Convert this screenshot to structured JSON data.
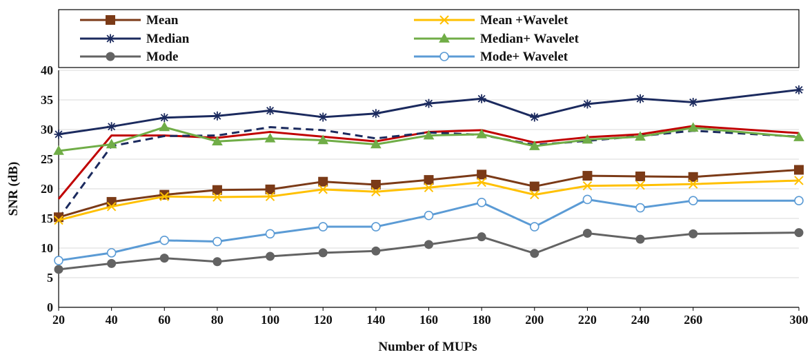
{
  "chart_data": {
    "type": "line",
    "title": "",
    "xlabel": "Number of MUPs",
    "ylabel": "SNR (dB)",
    "xlim": [
      20,
      300
    ],
    "ylim": [
      0,
      40
    ],
    "x": [
      20,
      40,
      60,
      80,
      100,
      120,
      140,
      160,
      180,
      200,
      220,
      240,
      260,
      300
    ],
    "x_tick_labels": [
      "20",
      "40",
      "60",
      "80",
      "100",
      "120",
      "140",
      "160",
      "180",
      "200",
      "220",
      "240",
      "260",
      "300"
    ],
    "y_ticks": [
      0,
      5,
      10,
      15,
      20,
      25,
      30,
      35,
      40
    ],
    "y_tick_labels": [
      "0",
      "5",
      "10",
      "15",
      "20",
      "25",
      "30",
      "35",
      "40"
    ],
    "grid": "horizontal",
    "legend_position": "top",
    "series": [
      {
        "name": "Mean",
        "color": "#7b3a17",
        "marker": "square",
        "dash": false,
        "values": [
          15.2,
          17.8,
          19.0,
          19.8,
          19.9,
          21.2,
          20.7,
          21.5,
          22.4,
          20.4,
          22.2,
          22.1,
          22.0,
          23.2
        ]
      },
      {
        "name": "Median",
        "color": "#1b2a5e",
        "marker": "star",
        "dash": false,
        "values": [
          29.2,
          30.5,
          32.0,
          32.3,
          33.2,
          32.1,
          32.7,
          34.4,
          35.2,
          32.1,
          34.3,
          35.2,
          34.6,
          36.7
        ]
      },
      {
        "name": "Mode",
        "color": "#636363",
        "marker": "circle-filled",
        "dash": false,
        "values": [
          6.4,
          7.4,
          8.3,
          7.7,
          8.6,
          9.2,
          9.5,
          10.6,
          11.9,
          9.1,
          12.5,
          11.5,
          12.4,
          12.6
        ]
      },
      {
        "name": "Mean +Wavelet",
        "color": "#ffc000",
        "marker": "x",
        "dash": false,
        "values": [
          14.7,
          17.0,
          18.7,
          18.6,
          18.7,
          19.9,
          19.5,
          20.2,
          21.1,
          19.0,
          20.5,
          20.6,
          20.8,
          21.4
        ]
      },
      {
        "name": "Median+ Wavelet",
        "color": "#70ad47",
        "marker": "triangle",
        "dash": false,
        "values": [
          26.4,
          27.5,
          30.4,
          28.0,
          28.5,
          28.2,
          27.5,
          29.0,
          29.2,
          27.2,
          28.3,
          28.8,
          30.3,
          28.7
        ]
      },
      {
        "name": "Mode+ Wavelet",
        "color": "#5b9bd5",
        "marker": "circle-open",
        "dash": false,
        "values": [
          7.9,
          9.2,
          11.3,
          11.1,
          12.4,
          13.6,
          13.6,
          15.5,
          17.7,
          13.6,
          18.2,
          16.8,
          18.0,
          18.0
        ]
      },
      {
        "name": "",
        "color": "#c00000",
        "marker": "none",
        "dash": false,
        "values": [
          18.3,
          29.0,
          29.0,
          28.6,
          29.6,
          28.8,
          28.0,
          29.6,
          29.9,
          27.8,
          28.7,
          29.2,
          30.6,
          29.4
        ]
      },
      {
        "name": "",
        "color": "#1b2a5e",
        "marker": "none",
        "dash": true,
        "values": [
          15.0,
          27.2,
          28.9,
          29.0,
          30.4,
          29.9,
          28.5,
          29.5,
          29.1,
          27.4,
          28.1,
          28.9,
          29.8,
          28.8
        ]
      }
    ]
  }
}
